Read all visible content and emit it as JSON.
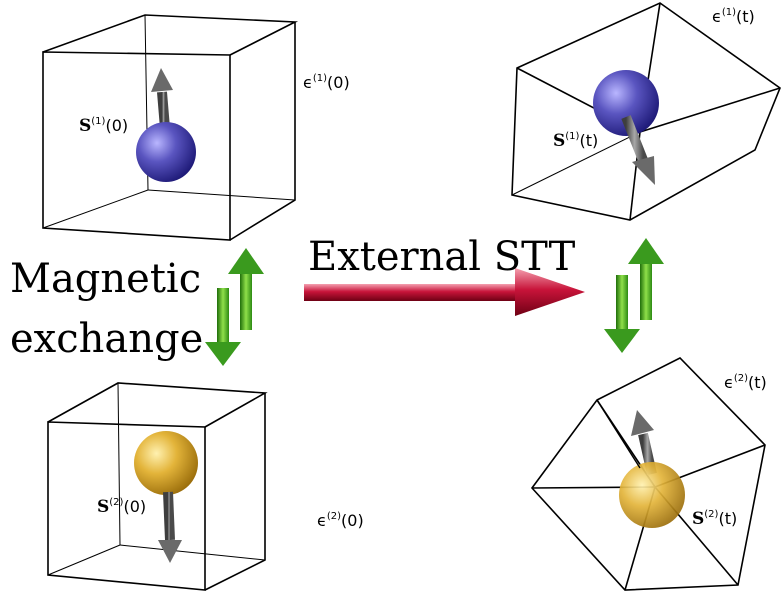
{
  "labels": {
    "eps1_0": {
      "base": "ϵ",
      "sup": "(1)",
      "arg": "(0)"
    },
    "eps2_0": {
      "base": "ϵ",
      "sup": "(2)",
      "arg": "(0)"
    },
    "eps1_t": {
      "base": "ϵ",
      "sup": "(1)",
      "arg": "(t)"
    },
    "eps2_t": {
      "base": "ϵ",
      "sup": "(2)",
      "arg": "(t)"
    },
    "s1_0": {
      "base": "S",
      "sup": "(1)",
      "arg": "(0)"
    },
    "s2_0": {
      "base": "S",
      "sup": "(2)",
      "arg": "(0)"
    },
    "s1_t": {
      "base": "S",
      "sup": "(1)",
      "arg": "(t)"
    },
    "s2_t": {
      "base": "S",
      "sup": "(2)",
      "arg": "(t)"
    }
  },
  "titles": {
    "magnetic_line1": "Magnetic",
    "magnetic_line2": "exchange",
    "external_stt": "External STT"
  },
  "colors": {
    "sphere1": "#5a55c0",
    "sphere2": "#e3b43a",
    "spin_arrow": "#707070",
    "exchange_arrow": "#3a9a1e",
    "stt_arrow": "#b8102e"
  }
}
